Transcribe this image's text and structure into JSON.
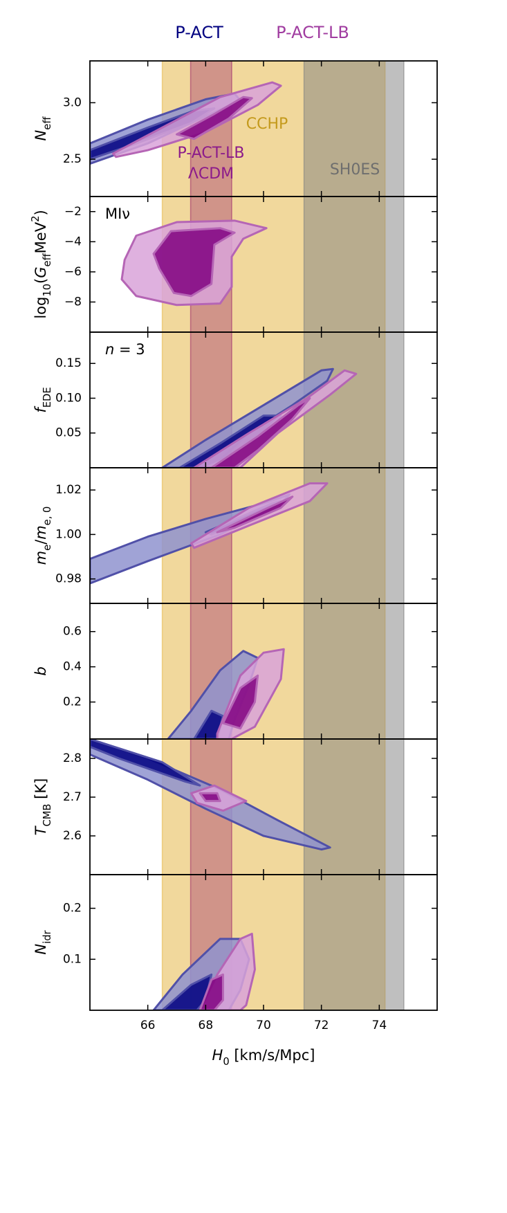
{
  "chart_data": [
    {
      "type": "contour",
      "series": [
        {
          "name": "P-ACT",
          "color": "#000080",
          "fills": [
            "#8f93cf",
            "#000080"
          ],
          "edge": "#5050a8",
          "outer": {
            "x": [
              64,
              66,
              68,
              69,
              69.2,
              68,
              66,
              64
            ],
            "y": [
              2.64,
              2.85,
              3.03,
              3.08,
              3.02,
              2.88,
              2.64,
              2.46
            ]
          },
          "inner": {
            "x": [
              64,
              66,
              67.6,
              68.3,
              67.5,
              65.5,
              64
            ],
            "y": [
              2.58,
              2.78,
              2.93,
              2.95,
              2.82,
              2.63,
              2.5
            ]
          }
        },
        {
          "name": "P-ACT-LB",
          "color": "#a03ca0",
          "fills": [
            "#d9a3d9",
            "#800080"
          ],
          "edge": "#b565b5",
          "outer": {
            "x": [
              64.8,
              66.5,
              68.5,
              70.3,
              70.6,
              69.8,
              68,
              66,
              64.9
            ],
            "y": [
              2.55,
              2.78,
              3.05,
              3.18,
              3.15,
              2.98,
              2.74,
              2.58,
              2.52
            ]
          },
          "inner": {
            "x": [
              67,
              68.3,
              69.3,
              69.6,
              68.8,
              67.6
            ],
            "y": [
              2.72,
              2.9,
              3.05,
              3.04,
              2.86,
              2.68
            ]
          }
        }
      ],
      "bands": [
        {
          "text": [
            "CCHP"
          ],
          "range": [
            66.5,
            74.2
          ],
          "fill": "#e6b84a",
          "opacity": 0.55,
          "color": "#c49a1c"
        },
        {
          "text": [
            "P-ACT-LB",
            "ΛCDM"
          ],
          "range": [
            67.48,
            68.9
          ],
          "fill": "#a0306e",
          "opacity": 0.4,
          "color": "#8b1a8b"
        },
        {
          "text": [
            "SH0ES"
          ],
          "range": [
            71.4,
            74.85
          ],
          "fill": "#808080",
          "opacity": 0.5,
          "color": "#6e6e6e"
        }
      ],
      "ylabel": [
        {
          "text": "N",
          "italic": true
        },
        {
          "text": "eff",
          "shift": "sub"
        }
      ],
      "xlim": [
        64,
        76
      ],
      "ylim": [
        2.17,
        3.37
      ],
      "yticks": [
        {
          "value": 2.5,
          "label": "2.5"
        },
        {
          "value": 3,
          "label": "3.0"
        }
      ]
    },
    {
      "type": "contour",
      "series": [
        {
          "color": "#a03ca0",
          "fills": [
            "#d9a3d9",
            "#800080"
          ],
          "edge": "#b565b5",
          "outer": {
            "x": [
              65.2,
              65.6,
              67,
              69,
              70.1,
              69.3,
              68.9,
              68.9,
              68.5,
              67,
              65.6,
              65.1
            ],
            "y": [
              -5.2,
              -3.6,
              -2.7,
              -2.6,
              -3.1,
              -3.8,
              -5,
              -7,
              -8.1,
              -8.2,
              -7.6,
              -6.5
            ]
          },
          "inner": {
            "x": [
              66.2,
              66.8,
              68.5,
              69,
              68.3,
              68.2,
              67.5,
              66.9,
              66.4
            ],
            "y": [
              -4.8,
              -3.3,
              -3.1,
              -3.4,
              -4.2,
              -6.8,
              -7.6,
              -7.4,
              -5.8
            ]
          }
        }
      ],
      "annotation": [
        {
          "text": "MIν"
        }
      ],
      "ylabel": [
        {
          "text": "log"
        },
        {
          "text": "10",
          "shift": "sub"
        },
        {
          "text": "("
        },
        {
          "text": "G",
          "italic": true
        },
        {
          "text": "eff",
          "shift": "sub"
        },
        {
          "text": "MeV"
        },
        {
          "text": "2",
          "shift": "super"
        },
        {
          "text": ")"
        }
      ],
      "xlim": [
        64,
        76
      ],
      "ylim": [
        -10,
        -1
      ],
      "yticks": [
        {
          "value": -8,
          "label": "−8"
        },
        {
          "value": -6,
          "label": "−6"
        },
        {
          "value": -4,
          "label": "−4"
        },
        {
          "value": -2,
          "label": "−2"
        }
      ]
    },
    {
      "type": "contour",
      "series": [
        {
          "color": "#000080",
          "fills": [
            "#8f93cf",
            "#000080"
          ],
          "edge": "#5050a8",
          "outer": {
            "x": [
              66.5,
              68,
              70,
              72,
              72.4,
              72.2,
              71,
              69.5,
              68.2
            ],
            "y": [
              0,
              0.04,
              0.09,
              0.14,
              0.142,
              0.125,
              0.09,
              0.05,
              0
            ]
          },
          "inner": {
            "x": [
              67.1,
              68.5,
              70,
              70.6,
              70,
              68.8,
              68
            ],
            "y": [
              0,
              0.035,
              0.075,
              0.075,
              0.05,
              0.015,
              0
            ]
          }
        },
        {
          "color": "#a03ca0",
          "fills": [
            "#d9a3d9",
            "#800080"
          ],
          "edge": "#b565b5",
          "outer": {
            "x": [
              67.6,
              69.5,
              71.5,
              72.8,
              73.2,
              72.3,
              70.5,
              69.2
            ],
            "y": [
              0,
              0.05,
              0.1,
              0.14,
              0.135,
              0.105,
              0.05,
              0
            ]
          },
          "inner": {
            "x": [
              68.2,
              69.8,
              71.2,
              71.6,
              71,
              69.8,
              69
            ],
            "y": [
              0,
              0.045,
              0.09,
              0.1,
              0.07,
              0.025,
              0
            ]
          }
        }
      ],
      "annotation": [
        {
          "text": "n",
          "italic": true
        },
        {
          "text": " = 3"
        }
      ],
      "ylabel": [
        {
          "text": "f",
          "italic": true
        },
        {
          "text": "EDE",
          "shift": "sub"
        }
      ],
      "xlim": [
        64,
        76
      ],
      "ylim": [
        0,
        0.195
      ],
      "yticks": [
        0.05,
        {
          "value": 0.1,
          "label": "0.10"
        },
        0.15
      ]
    },
    {
      "type": "contour",
      "series": [
        {
          "color": "#000080",
          "fills": [
            "#8f93cf",
            "#000080"
          ],
          "edge": "#5050a8",
          "outer": {
            "x": [
              64,
              66,
              68,
              70,
              70.9,
              70.6,
              68.5,
              66,
              64
            ],
            "y": [
              0.989,
              0.999,
              1.007,
              1.014,
              1.018,
              1.014,
              1,
              0.988,
              0.978
            ]
          },
          "inner": {
            "x": [
              68,
              70.3,
              70.6,
              70.2,
              68.2
            ],
            "y": [
              1.001,
              1.014,
              1.015,
              1.01,
              1
            ]
          }
        },
        {
          "color": "#a03ca0",
          "fills": [
            "#d9a3d9",
            "#800080"
          ],
          "edge": "#b565b5",
          "outer": {
            "x": [
              67.5,
              69.5,
              71.6,
              72.2,
              71.6,
              69.5,
              67.6
            ],
            "y": [
              0.996,
              1.012,
              1.023,
              1.023,
              1.015,
              1.004,
              0.994
            ]
          },
          "inner": {
            "x": [
              68.4,
              70,
              71,
              70.6,
              69
            ],
            "y": [
              1.001,
              1.011,
              1.017,
              1.012,
              1.003
            ]
          }
        }
      ],
      "ylabel": [
        {
          "text": "m",
          "italic": true
        },
        {
          "text": "e",
          "shift": "sub"
        },
        {
          "text": "/"
        },
        {
          "text": "m",
          "italic": true
        },
        {
          "text": "e, 0",
          "shift": "sub"
        }
      ],
      "xlim": [
        64,
        76
      ],
      "ylim": [
        0.969,
        1.03
      ],
      "yticks": [
        0.98,
        {
          "value": 1,
          "label": "1.00"
        },
        1.02
      ]
    },
    {
      "type": "contour",
      "series": [
        {
          "color": "#000080",
          "fills": [
            "#8f93cf",
            "#000080"
          ],
          "edge": "#5050a8",
          "outer": {
            "x": [
              66.7,
              67.5,
              68.5,
              69.3,
              69.8,
              69.5,
              69,
              68.8
            ],
            "y": [
              -0.01,
              0.15,
              0.38,
              0.49,
              0.45,
              0.3,
              0.1,
              -0.01
            ]
          },
          "inner": {
            "x": [
              67.6,
              68.2,
              68.6,
              68.4
            ],
            "y": [
              -0.01,
              0.15,
              0.12,
              -0.01
            ]
          }
        },
        {
          "color": "#a03ca0",
          "fills": [
            "#d9a3d9",
            "#800080"
          ],
          "edge": "#b565b5",
          "outer": {
            "x": [
              68.4,
              69.2,
              70,
              70.7,
              70.6,
              69.7,
              68.9,
              68.4
            ],
            "y": [
              0.02,
              0.35,
              0.48,
              0.5,
              0.33,
              0.06,
              -0.01,
              -0.01
            ]
          },
          "inner": {
            "x": [
              68.6,
              69.2,
              69.8,
              69.7,
              69.2
            ],
            "y": [
              0.08,
              0.28,
              0.35,
              0.2,
              0.05
            ]
          }
        }
      ],
      "ylabel": [
        {
          "text": "b",
          "italic": true
        }
      ],
      "xlim": [
        64,
        76
      ],
      "ylim": [
        -0.01,
        0.76
      ],
      "yticks": [
        0.2,
        0.4,
        0.6
      ]
    },
    {
      "type": "contour",
      "series": [
        {
          "color": "#000080",
          "fills": [
            "#8f93cf",
            "#000080"
          ],
          "edge": "#5050a8",
          "outer": {
            "x": [
              64,
              66,
              68.5,
              70.5,
              72.3,
              72,
              70,
              68,
              66,
              64
            ],
            "y": [
              2.85,
              2.8,
              2.72,
              2.64,
              2.57,
              2.565,
              2.6,
              2.67,
              2.745,
              2.81
            ]
          },
          "inner": {
            "x": [
              64,
              66.5,
              67.8,
              67.3,
              65,
              64
            ],
            "y": [
              2.85,
              2.79,
              2.73,
              2.74,
              2.8,
              2.83
            ]
          }
        },
        {
          "color": "#a03ca0",
          "fills": [
            "#d9a3d9",
            "#800080"
          ],
          "edge": "#b565b5",
          "outer": {
            "x": [
              67.5,
              68.3,
              69.4,
              68.6,
              67.7
            ],
            "y": [
              2.71,
              2.73,
              2.69,
              2.665,
              2.685
            ]
          },
          "inner": {
            "x": [
              67.8,
              68.4,
              68.5,
              68
            ],
            "y": [
              2.71,
              2.71,
              2.69,
              2.69
            ]
          }
        }
      ],
      "ylabel": [
        {
          "text": "T",
          "italic": true
        },
        {
          "text": "CMB",
          "shift": "sub"
        },
        {
          "text": " [K]"
        }
      ],
      "xlim": [
        64,
        76
      ],
      "ylim": [
        2.5,
        2.85
      ],
      "yticks": [
        2.6,
        2.7,
        2.8
      ]
    },
    {
      "type": "contour",
      "series": [
        {
          "color": "#000080",
          "fills": [
            "#8f93cf",
            "#000080"
          ],
          "edge": "#5050a8",
          "outer": {
            "x": [
              66.2,
              67.2,
              68.5,
              69.2,
              69.5,
              69.2,
              68.8
            ],
            "y": [
              0,
              0.07,
              0.14,
              0.14,
              0.1,
              0.04,
              0
            ]
          },
          "inner": {
            "x": [
              66.5,
              67.5,
              68.2,
              68,
              67.7
            ],
            "y": [
              0,
              0.05,
              0.07,
              0.02,
              0
            ]
          }
        },
        {
          "color": "#a03ca0",
          "fills": [
            "#d9a3d9",
            "#800080"
          ],
          "edge": "#b565b5",
          "outer": {
            "x": [
              67.8,
              68.4,
              69.2,
              69.6,
              69.7,
              69.4,
              69.2
            ],
            "y": [
              0,
              0.07,
              0.14,
              0.15,
              0.08,
              0.01,
              0
            ]
          },
          "inner": {
            "x": [
              67.8,
              68.2,
              68.6,
              68.6,
              68.3
            ],
            "y": [
              0,
              0.06,
              0.07,
              0.02,
              0
            ]
          }
        }
      ],
      "ylabel": [
        {
          "text": "N",
          "italic": true
        },
        {
          "text": "idr",
          "shift": "sub"
        }
      ],
      "xlabel": [
        {
          "text": "H",
          "italic": true
        },
        {
          "text": "0",
          "shift": "sub"
        },
        {
          "text": " [km/s/Mpc]"
        }
      ],
      "xlim": [
        64,
        76
      ],
      "ylim": [
        0,
        0.266
      ],
      "yticks": [
        0.1,
        0.2
      ],
      "xticks": [
        66,
        68,
        70,
        72,
        74
      ]
    }
  ]
}
